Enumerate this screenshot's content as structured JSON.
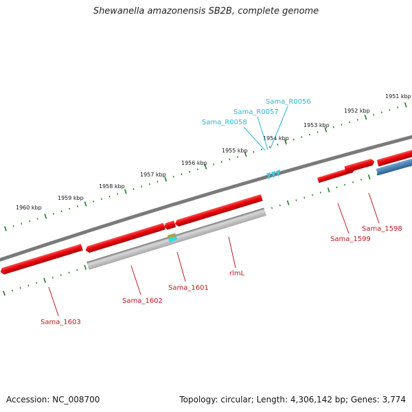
{
  "title": "Shewanella amazonensis SB2B, complete genome",
  "accession": "Accession: NC_008700",
  "summary": "Topology: circular; Length: 4,306,142 bp; Genes: 3,774",
  "colors": {
    "backbone": "#7a7a7a",
    "gene_red": "#e8060c",
    "gene_gray": "#b9b9b9",
    "gene_blue": "#3f7fb3",
    "trna": "#3ec3e0",
    "tick": "#1e7a1e",
    "label_red": "#c4161c",
    "label_cyan": "#2bb6d3"
  },
  "kbp_labels": [
    "1951 kbp",
    "1952 kbp",
    "1953 kbp",
    "1954 kbp",
    "1955 kbp",
    "1956 kbp",
    "1957 kbp",
    "1958 kbp",
    "1959 kbp",
    "1960 kbp"
  ],
  "gene_labels_red": [
    "Sama_1598",
    "Sama_1599",
    "rlmL",
    "Sama_1601",
    "Sama_1602",
    "Sama_1603"
  ],
  "gene_labels_cyan": [
    "Sama_R0056",
    "Sama_R0057",
    "Sama_R0058"
  ]
}
